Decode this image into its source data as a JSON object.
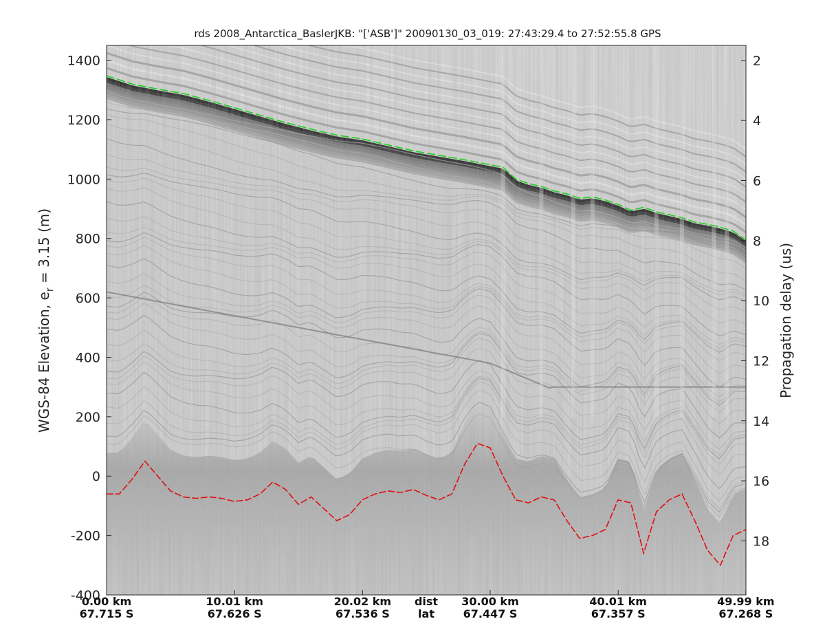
{
  "chart_data": {
    "type": "radargram",
    "title": "rds 2008_Antarctica_BaslerJKB: \"['ASB']\"  20090130_03_019: 27:43:29.4 to 27:52:55.8 GPS",
    "ylabel_left": "WGS-84 Elevation, e_r = 3.15 (m)",
    "ylabel_left_main": "WGS-84 Elevation, e",
    "ylabel_left_sub": "r",
    "ylabel_left_tail": " = 3.15 (m)",
    "ylabel_right": "Propagation delay (us)",
    "ylim_left": [
      -400,
      1450
    ],
    "ylim_right": [
      1.5,
      19.8
    ],
    "y_ticks_left": [
      1400,
      1200,
      1000,
      800,
      600,
      400,
      200,
      0,
      -200,
      -400
    ],
    "y_ticks_right": [
      2,
      4,
      6,
      8,
      10,
      12,
      14,
      16,
      18
    ],
    "x_range_km": [
      0,
      50
    ],
    "bottom_rows": {
      "dist_label": "dist",
      "lat_label": "lat",
      "ticks": [
        {
          "km": 0.0,
          "dist": "0.00 km",
          "lat": "67.715 S"
        },
        {
          "km": 10.01,
          "dist": "10.01 km",
          "lat": "67.626 S"
        },
        {
          "km": 20.02,
          "dist": "20.02 km",
          "lat": "67.536 S"
        },
        {
          "km": 30.0,
          "dist": "30.00 km",
          "lat": "67.447 S"
        },
        {
          "km": 40.01,
          "dist": "40.01 km",
          "lat": "67.357 S"
        },
        {
          "km": 49.99,
          "dist": "49.99 km",
          "lat": "67.268 S"
        }
      ]
    },
    "series": [
      {
        "color": "#1ed21e",
        "x": [
          0,
          2,
          4,
          6,
          8,
          10,
          12,
          14,
          16,
          18,
          20,
          22,
          24,
          26,
          28,
          30,
          31,
          32,
          33,
          34,
          35,
          36,
          37,
          38,
          39,
          40,
          41,
          42,
          43,
          44,
          45,
          46,
          47,
          48,
          49,
          50
        ],
        "y": [
          1348,
          1320,
          1303,
          1288,
          1265,
          1240,
          1215,
          1190,
          1168,
          1148,
          1135,
          1115,
          1095,
          1080,
          1065,
          1048,
          1040,
          1000,
          985,
          975,
          960,
          950,
          935,
          940,
          930,
          915,
          895,
          905,
          890,
          880,
          870,
          855,
          848,
          838,
          825,
          795
        ]
      },
      {
        "color": "#e01010",
        "x": [
          0,
          1,
          2,
          3,
          4,
          5,
          6,
          7,
          8,
          9,
          10,
          11,
          12,
          13,
          14,
          15,
          16,
          17,
          18,
          19,
          20,
          21,
          22,
          23,
          24,
          25,
          26,
          27,
          28,
          29,
          30,
          31,
          32,
          33,
          34,
          35,
          36,
          37,
          38,
          39,
          40,
          41,
          42,
          43,
          44,
          45,
          46,
          47,
          48,
          49,
          50
        ],
        "y": [
          -60,
          -60,
          -10,
          50,
          0,
          -50,
          -70,
          -75,
          -70,
          -75,
          -85,
          -80,
          -60,
          -20,
          -45,
          -95,
          -70,
          -110,
          -150,
          -130,
          -80,
          -60,
          -50,
          -55,
          -45,
          -65,
          -80,
          -60,
          40,
          110,
          95,
          0,
          -80,
          -90,
          -70,
          -80,
          -150,
          -210,
          -200,
          -180,
          -80,
          -90,
          -260,
          -120,
          -80,
          -60,
          -150,
          -250,
          -300,
          -200,
          -180
        ]
      }
    ],
    "colors": {
      "surface_pick": "#1ed21e",
      "bed_pick": "#e01010",
      "background": "#ffffff"
    }
  }
}
